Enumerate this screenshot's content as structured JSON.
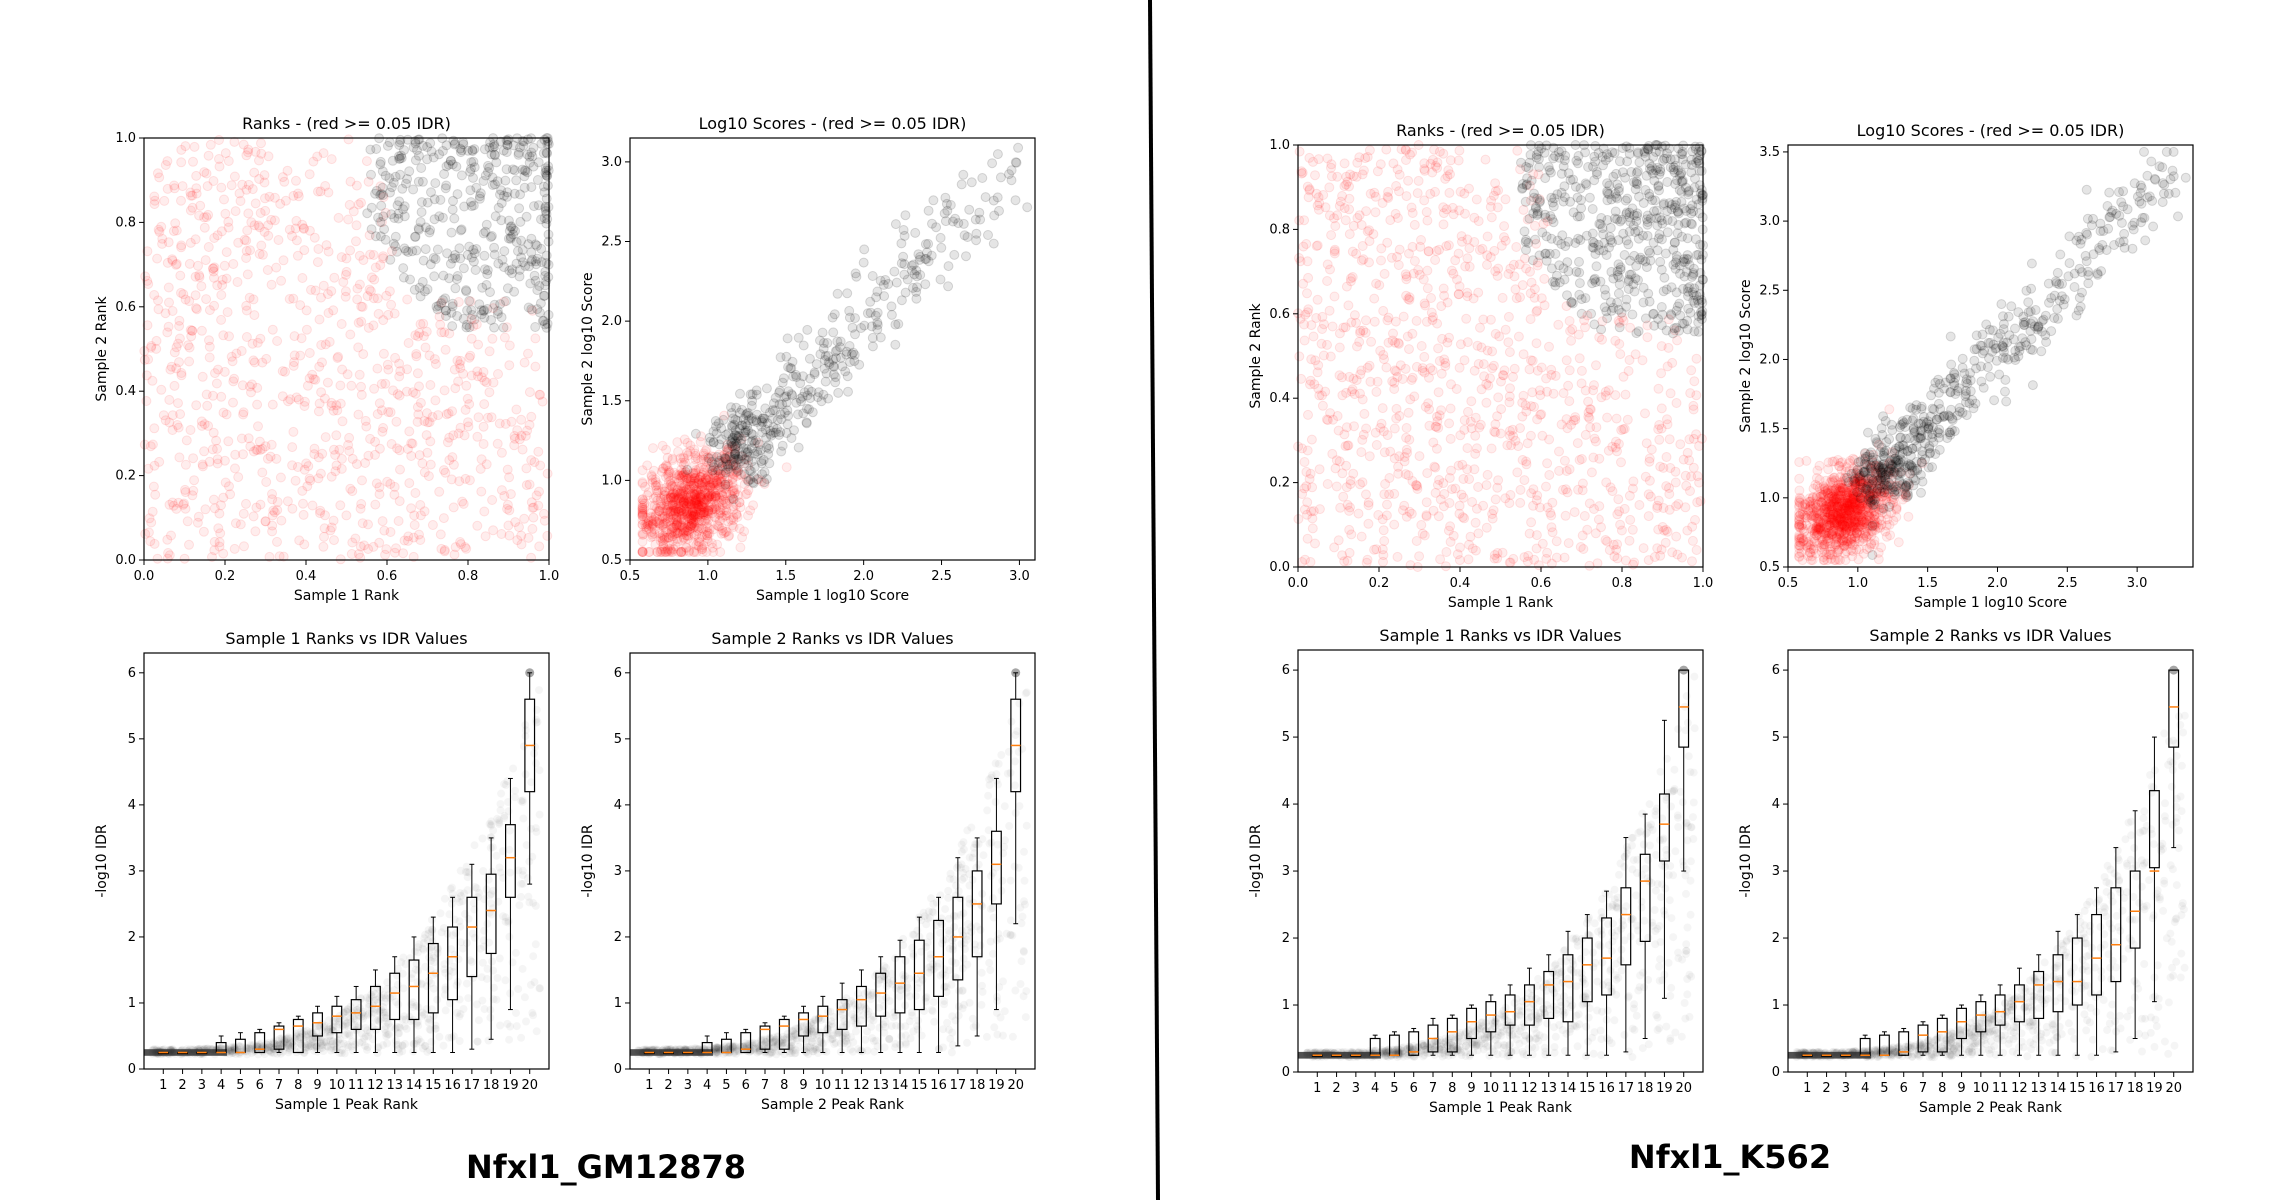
{
  "panels": [
    {
      "title": "Nfxl1_GM12878",
      "charts": [
        {
          "type": "scatter",
          "title": "Ranks - (red >= 0.05 IDR)",
          "xlabel": "Sample 1 Rank",
          "ylabel": "Sample 2 Rank",
          "xlim": [
            0,
            1
          ],
          "ylim": [
            0,
            1
          ],
          "xticks": [
            "0.0",
            "0.2",
            "0.4",
            "0.6",
            "0.8",
            "1.0"
          ],
          "yticks": [
            "0.0",
            "0.2",
            "0.4",
            "0.6",
            "0.8",
            "1.0"
          ],
          "series": [
            {
              "color": "#ff0000",
              "region": "rank sum below ~1.45, uniform spread",
              "approx_points": 1500
            },
            {
              "color": "#000000",
              "region": "upper-right corner, both ranks above ~0.55",
              "approx_points": 700
            }
          ]
        },
        {
          "type": "scatter",
          "title": "Log10 Scores - (red >= 0.05 IDR)",
          "xlabel": "Sample 1 log10 Score",
          "ylabel": "Sample 2 log10 Score",
          "xlim": [
            0.5,
            3.1
          ],
          "ylim": [
            0.5,
            3.15
          ],
          "xticks": [
            "0.5",
            "1.0",
            "1.5",
            "2.0",
            "2.5",
            "3.0"
          ],
          "yticks": [
            "0.5",
            "1.0",
            "1.5",
            "2.0",
            "2.5",
            "3.0"
          ],
          "series": [
            {
              "color": "#ff0000",
              "center": [
                0.9,
                0.85
              ],
              "approx_points": 1500
            },
            {
              "color": "#000000",
              "center": [
                1.5,
                1.45
              ],
              "approx_points": 700
            }
          ]
        },
        {
          "type": "box",
          "title": "Sample 1 Ranks vs IDR Values",
          "xlabel": "Sample 1 Peak Rank",
          "ylabel": "-log10 IDR",
          "ylim": [
            0,
            6.3
          ],
          "categories": [
            "1",
            "2",
            "3",
            "4",
            "5",
            "6",
            "7",
            "8",
            "9",
            "10",
            "11",
            "12",
            "13",
            "14",
            "15",
            "16",
            "17",
            "18",
            "19",
            "20"
          ],
          "yticks": [
            "0",
            "1",
            "2",
            "3",
            "4",
            "5",
            "6"
          ],
          "medians": [
            0.25,
            0.25,
            0.25,
            0.25,
            0.25,
            0.3,
            0.6,
            0.65,
            0.7,
            0.8,
            0.85,
            0.95,
            1.15,
            1.25,
            1.45,
            1.7,
            2.15,
            2.4,
            3.2,
            4.9
          ],
          "q1": [
            0.25,
            0.25,
            0.25,
            0.25,
            0.25,
            0.25,
            0.3,
            0.25,
            0.5,
            0.55,
            0.6,
            0.6,
            0.75,
            0.75,
            0.85,
            1.05,
            1.4,
            1.75,
            2.6,
            4.2
          ],
          "q3": [
            0.25,
            0.25,
            0.25,
            0.4,
            0.45,
            0.55,
            0.65,
            0.75,
            0.85,
            0.95,
            1.05,
            1.25,
            1.45,
            1.65,
            1.9,
            2.15,
            2.6,
            2.95,
            3.7,
            5.6
          ],
          "whisker_low": [
            0.25,
            0.25,
            0.25,
            0.25,
            0.25,
            0.25,
            0.25,
            0.25,
            0.25,
            0.25,
            0.25,
            0.25,
            0.25,
            0.25,
            0.25,
            0.25,
            0.3,
            0.45,
            0.9,
            2.8
          ],
          "whisker_high": [
            0.25,
            0.25,
            0.25,
            0.5,
            0.55,
            0.6,
            0.7,
            0.8,
            0.95,
            1.1,
            1.25,
            1.5,
            1.7,
            2.0,
            2.3,
            2.6,
            3.1,
            3.5,
            4.4,
            6.0
          ]
        },
        {
          "type": "box",
          "title": "Sample 2 Ranks vs IDR Values",
          "xlabel": "Sample 2 Peak Rank",
          "ylabel": "-log10 IDR",
          "ylim": [
            0,
            6.3
          ],
          "categories": [
            "1",
            "2",
            "3",
            "4",
            "5",
            "6",
            "7",
            "8",
            "9",
            "10",
            "11",
            "12",
            "13",
            "14",
            "15",
            "16",
            "17",
            "18",
            "19",
            "20"
          ],
          "yticks": [
            "0",
            "1",
            "2",
            "3",
            "4",
            "5",
            "6"
          ],
          "medians": [
            0.25,
            0.25,
            0.25,
            0.25,
            0.25,
            0.3,
            0.6,
            0.65,
            0.75,
            0.8,
            0.9,
            1.05,
            1.15,
            1.3,
            1.45,
            1.7,
            2.0,
            2.5,
            3.1,
            4.9
          ],
          "q1": [
            0.25,
            0.25,
            0.25,
            0.25,
            0.25,
            0.25,
            0.3,
            0.3,
            0.5,
            0.55,
            0.6,
            0.65,
            0.8,
            0.85,
            0.9,
            1.1,
            1.35,
            1.7,
            2.5,
            4.2
          ],
          "q3": [
            0.25,
            0.25,
            0.25,
            0.4,
            0.45,
            0.55,
            0.65,
            0.75,
            0.85,
            0.95,
            1.05,
            1.25,
            1.45,
            1.7,
            1.95,
            2.25,
            2.6,
            3.0,
            3.6,
            5.6
          ],
          "whisker_low": [
            0.25,
            0.25,
            0.25,
            0.25,
            0.25,
            0.25,
            0.25,
            0.25,
            0.25,
            0.25,
            0.25,
            0.25,
            0.25,
            0.25,
            0.25,
            0.25,
            0.35,
            0.5,
            0.9,
            2.2
          ],
          "whisker_high": [
            0.25,
            0.25,
            0.25,
            0.5,
            0.55,
            0.6,
            0.7,
            0.8,
            0.95,
            1.1,
            1.3,
            1.5,
            1.7,
            1.95,
            2.3,
            2.6,
            3.2,
            3.5,
            4.4,
            6.0
          ]
        }
      ]
    },
    {
      "title": "Nfxl1_K562",
      "charts": [
        {
          "type": "scatter",
          "title": "Ranks - (red >= 0.05 IDR)",
          "xlabel": "Sample 1 Rank",
          "ylabel": "Sample 2 Rank",
          "xlim": [
            0,
            1
          ],
          "ylim": [
            0,
            1
          ],
          "xticks": [
            "0.0",
            "0.2",
            "0.4",
            "0.6",
            "0.8",
            "1.0"
          ],
          "yticks": [
            "0.0",
            "0.2",
            "0.4",
            "0.6",
            "0.8",
            "1.0"
          ],
          "series": [
            {
              "color": "#ff0000",
              "region": "rank sum below ~1.35, uniform spread",
              "approx_points": 1700
            },
            {
              "color": "#000000",
              "region": "upper-right corner, both ranks above ~0.5",
              "approx_points": 900
            }
          ]
        },
        {
          "type": "scatter",
          "title": "Log10 Scores - (red >= 0.05 IDR)",
          "xlabel": "Sample 1 log10 Score",
          "ylabel": "Sample 2 log10 Score",
          "xlim": [
            0.5,
            3.4
          ],
          "ylim": [
            0.5,
            3.55
          ],
          "xticks": [
            "0.5",
            "1.0",
            "1.5",
            "2.0",
            "2.5",
            "3.0"
          ],
          "yticks": [
            "0.5",
            "1.0",
            "1.5",
            "2.0",
            "2.5",
            "3.0",
            "3.5"
          ],
          "series": [
            {
              "color": "#ff0000",
              "center": [
                0.9,
                0.9
              ],
              "approx_points": 1700
            },
            {
              "color": "#000000",
              "center": [
                1.6,
                1.6
              ],
              "approx_points": 900
            }
          ]
        },
        {
          "type": "box",
          "title": "Sample 1 Ranks vs IDR Values",
          "xlabel": "Sample 1 Peak Rank",
          "ylabel": "-log10 IDR",
          "ylim": [
            0,
            6.3
          ],
          "categories": [
            "1",
            "2",
            "3",
            "4",
            "5",
            "6",
            "7",
            "8",
            "9",
            "10",
            "11",
            "12",
            "13",
            "14",
            "15",
            "16",
            "17",
            "18",
            "19",
            "20"
          ],
          "yticks": [
            "0",
            "1",
            "2",
            "3",
            "4",
            "5",
            "6"
          ],
          "medians": [
            0.25,
            0.25,
            0.25,
            0.25,
            0.25,
            0.3,
            0.5,
            0.6,
            0.75,
            0.85,
            0.9,
            1.05,
            1.3,
            1.35,
            1.6,
            1.7,
            2.35,
            2.85,
            3.7,
            5.45
          ],
          "q1": [
            0.25,
            0.25,
            0.25,
            0.25,
            0.25,
            0.25,
            0.3,
            0.3,
            0.5,
            0.6,
            0.7,
            0.7,
            0.8,
            0.75,
            1.05,
            1.15,
            1.6,
            1.95,
            3.15,
            4.85
          ],
          "q3": [
            0.25,
            0.25,
            0.25,
            0.5,
            0.55,
            0.6,
            0.7,
            0.8,
            0.95,
            1.05,
            1.15,
            1.3,
            1.5,
            1.75,
            2.0,
            2.3,
            2.75,
            3.25,
            4.15,
            6.0
          ],
          "whisker_low": [
            0.25,
            0.25,
            0.25,
            0.25,
            0.25,
            0.25,
            0.25,
            0.25,
            0.25,
            0.25,
            0.25,
            0.25,
            0.25,
            0.25,
            0.25,
            0.25,
            0.3,
            0.5,
            1.1,
            3.0
          ],
          "whisker_high": [
            0.25,
            0.25,
            0.25,
            0.55,
            0.6,
            0.65,
            0.8,
            0.85,
            1.0,
            1.15,
            1.3,
            1.55,
            1.75,
            2.1,
            2.35,
            2.7,
            3.5,
            3.85,
            5.25,
            6.0
          ]
        },
        {
          "type": "box",
          "title": "Sample 2 Ranks vs IDR Values",
          "xlabel": "Sample 2 Peak Rank",
          "ylabel": "-log10 IDR",
          "ylim": [
            0,
            6.3
          ],
          "categories": [
            "1",
            "2",
            "3",
            "4",
            "5",
            "6",
            "7",
            "8",
            "9",
            "10",
            "11",
            "12",
            "13",
            "14",
            "15",
            "16",
            "17",
            "18",
            "19",
            "20"
          ],
          "yticks": [
            "0",
            "1",
            "2",
            "3",
            "4",
            "5",
            "6"
          ],
          "medians": [
            0.25,
            0.25,
            0.25,
            0.25,
            0.25,
            0.3,
            0.55,
            0.6,
            0.75,
            0.85,
            0.9,
            1.05,
            1.3,
            1.35,
            1.35,
            1.7,
            1.9,
            2.4,
            3.0,
            5.45
          ],
          "q1": [
            0.25,
            0.25,
            0.25,
            0.25,
            0.25,
            0.25,
            0.3,
            0.3,
            0.5,
            0.6,
            0.7,
            0.75,
            0.8,
            0.9,
            1.0,
            1.15,
            1.35,
            1.85,
            3.05,
            4.85
          ],
          "q3": [
            0.25,
            0.25,
            0.25,
            0.5,
            0.55,
            0.6,
            0.7,
            0.8,
            0.95,
            1.05,
            1.15,
            1.3,
            1.5,
            1.75,
            2.0,
            2.35,
            2.75,
            3.0,
            4.2,
            6.0
          ],
          "whisker_low": [
            0.25,
            0.25,
            0.25,
            0.25,
            0.25,
            0.25,
            0.25,
            0.25,
            0.25,
            0.25,
            0.25,
            0.25,
            0.25,
            0.25,
            0.25,
            0.25,
            0.3,
            0.5,
            1.05,
            3.35
          ],
          "whisker_high": [
            0.25,
            0.25,
            0.25,
            0.55,
            0.6,
            0.65,
            0.75,
            0.85,
            1.0,
            1.15,
            1.3,
            1.55,
            1.75,
            2.1,
            2.35,
            2.75,
            3.35,
            3.9,
            5.0,
            6.0
          ]
        }
      ]
    }
  ]
}
